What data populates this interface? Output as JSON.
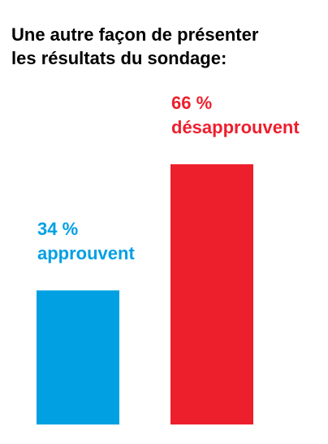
{
  "header": {
    "title_lines": [
      "Une autre façon de présenter",
      "les résultats du sondage:"
    ]
  },
  "chart_data": {
    "type": "bar",
    "title": "Une autre façon de présenter les résultats du sondage:",
    "xlabel": "",
    "ylabel": "",
    "ylim": [
      0,
      66
    ],
    "grid": false,
    "legend": "none",
    "categories": [
      "approuvent",
      "désapprouvent"
    ],
    "values": [
      34,
      66
    ],
    "colors": [
      "#00a0e3",
      "#ee1f2d"
    ],
    "data_labels": [
      [
        "34 %",
        "approuvent"
      ],
      [
        "66 %",
        "désapprouvent"
      ]
    ]
  }
}
